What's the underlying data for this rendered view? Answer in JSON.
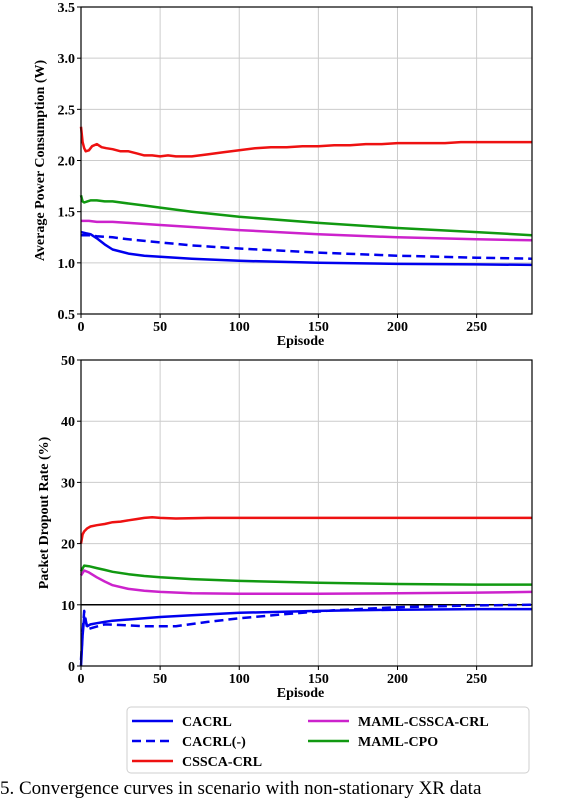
{
  "chart_data": [
    {
      "type": "line",
      "xlabel": "Episode",
      "ylabel": "Average Power Consumption (W)",
      "xlim": [
        0,
        285
      ],
      "ylim": [
        0.5,
        3.5
      ],
      "xticks": [
        0,
        50,
        100,
        150,
        200,
        250
      ],
      "xtick_labels": [
        "0",
        "50",
        "100",
        "150",
        "200",
        "250"
      ],
      "yticks": [
        0.5,
        1.0,
        1.5,
        2.0,
        2.5,
        3.0,
        3.5
      ],
      "ytick_labels": [
        "0.5",
        "1.0",
        "1.5",
        "2.0",
        "2.5",
        "3.0",
        "3.5"
      ],
      "grid": true,
      "series": [
        {
          "name": "CACRL",
          "color": "#0000ee",
          "dash": false,
          "x": [
            0,
            3,
            6,
            10,
            15,
            20,
            30,
            40,
            50,
            70,
            100,
            150,
            200,
            250,
            285
          ],
          "y": [
            1.3,
            1.29,
            1.28,
            1.24,
            1.18,
            1.13,
            1.09,
            1.07,
            1.06,
            1.04,
            1.02,
            1.0,
            0.99,
            0.985,
            0.98
          ]
        },
        {
          "name": "CACRL(-)",
          "color": "#0000ee",
          "dash": true,
          "x": [
            0,
            5,
            10,
            20,
            30,
            50,
            70,
            100,
            150,
            200,
            250,
            285
          ],
          "y": [
            1.27,
            1.27,
            1.26,
            1.25,
            1.23,
            1.2,
            1.17,
            1.14,
            1.1,
            1.07,
            1.05,
            1.04
          ]
        },
        {
          "name": "CSSCA-CRL",
          "color": "#ee1111",
          "dash": false,
          "x": [
            0,
            1,
            2,
            3,
            5,
            7,
            10,
            13,
            16,
            20,
            25,
            30,
            35,
            40,
            45,
            50,
            55,
            60,
            65,
            70,
            80,
            90,
            100,
            110,
            120,
            130,
            140,
            150,
            160,
            170,
            180,
            190,
            200,
            210,
            220,
            230,
            240,
            250,
            260,
            270,
            280,
            285
          ],
          "y": [
            2.33,
            2.18,
            2.12,
            2.09,
            2.1,
            2.14,
            2.16,
            2.13,
            2.12,
            2.11,
            2.09,
            2.09,
            2.07,
            2.05,
            2.05,
            2.04,
            2.05,
            2.04,
            2.04,
            2.04,
            2.06,
            2.08,
            2.1,
            2.12,
            2.13,
            2.13,
            2.14,
            2.14,
            2.15,
            2.15,
            2.16,
            2.16,
            2.17,
            2.17,
            2.17,
            2.17,
            2.18,
            2.18,
            2.18,
            2.18,
            2.18,
            2.18
          ]
        },
        {
          "name": "MAML-CSSCA-CRL",
          "color": "#cc22cc",
          "dash": false,
          "x": [
            0,
            5,
            10,
            20,
            30,
            50,
            70,
            100,
            150,
            200,
            250,
            285
          ],
          "y": [
            1.41,
            1.41,
            1.4,
            1.4,
            1.39,
            1.37,
            1.35,
            1.32,
            1.28,
            1.25,
            1.23,
            1.22
          ]
        },
        {
          "name": "MAML-CPO",
          "color": "#119911",
          "dash": false,
          "x": [
            0,
            1,
            2,
            4,
            6,
            10,
            15,
            20,
            30,
            40,
            50,
            70,
            100,
            150,
            200,
            250,
            285
          ],
          "y": [
            1.66,
            1.6,
            1.59,
            1.6,
            1.61,
            1.61,
            1.6,
            1.6,
            1.58,
            1.56,
            1.54,
            1.5,
            1.45,
            1.39,
            1.34,
            1.3,
            1.27
          ]
        }
      ]
    },
    {
      "type": "line",
      "xlabel": "Episode",
      "ylabel": "Packet Dropout Rate (%)",
      "xlim": [
        0,
        285
      ],
      "ylim": [
        0,
        50
      ],
      "xticks": [
        0,
        50,
        100,
        150,
        200,
        250
      ],
      "xtick_labels": [
        "0",
        "50",
        "100",
        "150",
        "200",
        "250"
      ],
      "yticks": [
        0,
        10,
        20,
        30,
        40,
        50
      ],
      "ytick_labels": [
        "0",
        "10",
        "20",
        "30",
        "40",
        "50"
      ],
      "grid": true,
      "reference_line": {
        "y": 10,
        "color": "#000000"
      },
      "series": [
        {
          "name": "CACRL",
          "color": "#0000ee",
          "dash": false,
          "x": [
            0,
            1,
            2,
            4,
            6,
            10,
            15,
            20,
            30,
            40,
            50,
            70,
            100,
            150,
            200,
            250,
            285
          ],
          "y": [
            0,
            5.0,
            8.0,
            6.5,
            6.8,
            7.0,
            7.2,
            7.4,
            7.6,
            7.8,
            8.0,
            8.3,
            8.7,
            9.0,
            9.2,
            9.3,
            9.3
          ]
        },
        {
          "name": "CACRL(-)",
          "color": "#0000ee",
          "dash": true,
          "x": [
            0,
            1,
            2,
            4,
            8,
            15,
            25,
            40,
            60,
            80,
            100,
            130,
            160,
            200,
            250,
            285
          ],
          "y": [
            1.0,
            5.5,
            9.0,
            6.0,
            6.3,
            6.8,
            6.7,
            6.5,
            6.5,
            7.2,
            7.8,
            8.5,
            9.1,
            9.6,
            9.9,
            10.0
          ]
        },
        {
          "name": "CSSCA-CRL",
          "color": "#ee1111",
          "dash": false,
          "x": [
            0,
            1,
            2,
            4,
            6,
            10,
            15,
            20,
            25,
            30,
            35,
            40,
            45,
            50,
            60,
            80,
            100,
            150,
            200,
            250,
            285
          ],
          "y": [
            20.0,
            21.5,
            22.0,
            22.5,
            22.8,
            23.0,
            23.2,
            23.5,
            23.6,
            23.8,
            24.0,
            24.2,
            24.3,
            24.2,
            24.1,
            24.2,
            24.2,
            24.2,
            24.2,
            24.2,
            24.2
          ]
        },
        {
          "name": "MAML-CSSCA-CRL",
          "color": "#cc22cc",
          "dash": false,
          "x": [
            0,
            2,
            5,
            10,
            15,
            20,
            30,
            40,
            50,
            70,
            100,
            150,
            200,
            250,
            285
          ],
          "y": [
            14.8,
            15.6,
            15.3,
            14.5,
            13.8,
            13.2,
            12.6,
            12.3,
            12.1,
            11.9,
            11.8,
            11.8,
            11.9,
            12.0,
            12.1
          ]
        },
        {
          "name": "MAML-CPO",
          "color": "#119911",
          "dash": false,
          "x": [
            0,
            2,
            5,
            10,
            15,
            20,
            30,
            40,
            50,
            70,
            100,
            150,
            200,
            250,
            285
          ],
          "y": [
            15.5,
            16.4,
            16.3,
            16.0,
            15.7,
            15.4,
            15.0,
            14.7,
            14.5,
            14.2,
            13.9,
            13.6,
            13.4,
            13.3,
            13.3
          ]
        }
      ]
    }
  ],
  "legend": {
    "placement": "bottom-center",
    "entries": [
      {
        "label": "CACRL",
        "color": "#0000ee",
        "dash": false
      },
      {
        "label": "MAML-CSSCA-CRL",
        "color": "#cc22cc",
        "dash": false
      },
      {
        "label": "CACRL(-)",
        "color": "#0000ee",
        "dash": true
      },
      {
        "label": "MAML-CPO",
        "color": "#119911",
        "dash": false
      },
      {
        "label": "CSSCA-CRL",
        "color": "#ee1111",
        "dash": false
      }
    ]
  },
  "caption": "5.  Convergence curves in scenario with non-stationary XR data"
}
